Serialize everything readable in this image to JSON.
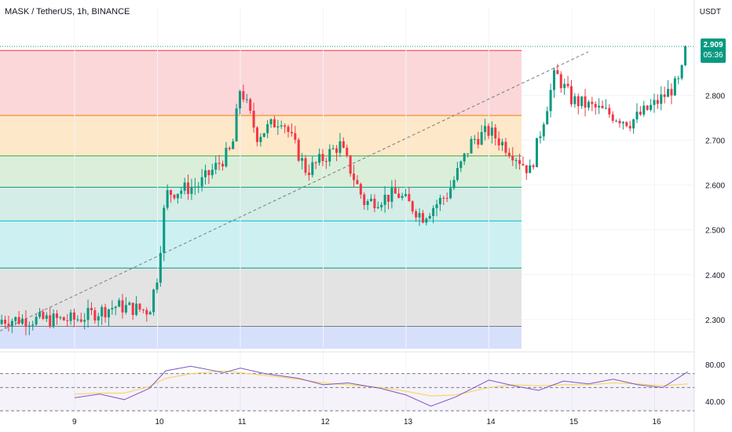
{
  "header": {
    "symbol_title": "MASK / TetherUS, 1h, BINANCE",
    "currency": "USDT"
  },
  "last_price": {
    "value": "2.909",
    "countdown": "05:36"
  },
  "colors": {
    "up": "#089981",
    "down": "#f23645",
    "trend": "#787b86",
    "rsi_line": "#7e57c2",
    "rsi_ma": "#f7d34d"
  },
  "chart_data": [
    {
      "type": "candlestick",
      "y_axis_ticks": [
        "2.800",
        "2.700",
        "2.600",
        "2.500",
        "2.400",
        "2.300"
      ],
      "x_axis_ticks": [
        "9",
        "10",
        "11",
        "12",
        "13",
        "14",
        "15",
        "16"
      ],
      "ylim": [
        2.235,
        2.995
      ],
      "fib_levels": [
        {
          "price": 2.9,
          "fill": "#fcd7da",
          "line": "#f23645"
        },
        {
          "price": 2.755,
          "fill": "#fde8c9",
          "line": "#f57c00"
        },
        {
          "price": 2.665,
          "fill": "#dbeed9",
          "line": "#4caf50"
        },
        {
          "price": 2.595,
          "fill": "#d4ede6",
          "line": "#089981"
        },
        {
          "price": 2.52,
          "fill": "#cdf1f2",
          "line": "#00bcd4"
        },
        {
          "price": 2.415,
          "fill": "#e3e3e3",
          "line": "#089981"
        },
        {
          "price": 2.285,
          "fill": "#d7e0fb",
          "line": "#787b86"
        }
      ],
      "fib_bottom": 2.235,
      "trend_line": {
        "start": {
          "time": 0,
          "price": 2.285
        },
        "end": {
          "time": 6.2,
          "price": 2.897
        }
      },
      "time_origin_label": "9",
      "series": [
        {
          "time": 0.0,
          "price": 2.3
        },
        {
          "time": 0.5,
          "price": 2.33
        },
        {
          "time": 0.9,
          "price": 2.32
        },
        {
          "time": 1.0,
          "price": 2.4
        },
        {
          "time": 1.1,
          "price": 2.58
        },
        {
          "time": 1.5,
          "price": 2.6
        },
        {
          "time": 1.9,
          "price": 2.68
        },
        {
          "time": 2.0,
          "price": 2.82
        },
        {
          "time": 2.2,
          "price": 2.71
        },
        {
          "time": 2.5,
          "price": 2.75
        },
        {
          "time": 2.8,
          "price": 2.63
        },
        {
          "time": 3.2,
          "price": 2.69
        },
        {
          "time": 3.5,
          "price": 2.56
        },
        {
          "time": 3.9,
          "price": 2.58
        },
        {
          "time": 4.2,
          "price": 2.53
        },
        {
          "time": 4.5,
          "price": 2.58
        },
        {
          "time": 4.8,
          "price": 2.7
        },
        {
          "time": 5.0,
          "price": 2.72
        },
        {
          "time": 5.3,
          "price": 2.67
        },
        {
          "time": 5.5,
          "price": 2.63
        },
        {
          "time": 5.8,
          "price": 2.85
        },
        {
          "time": 6.0,
          "price": 2.79
        },
        {
          "time": 6.3,
          "price": 2.77
        },
        {
          "time": 6.7,
          "price": 2.74
        },
        {
          "time": 7.0,
          "price": 2.78
        },
        {
          "time": 7.3,
          "price": 2.83
        },
        {
          "time": 7.4,
          "price": 2.909
        }
      ]
    },
    {
      "type": "line",
      "indicator": "RSI",
      "y_axis_ticks": [
        "80.00",
        "40.00"
      ],
      "ylim": [
        30,
        90
      ],
      "bands": [
        70,
        55,
        30
      ],
      "x": [
        0.0,
        0.3,
        0.6,
        0.9,
        1.1,
        1.4,
        1.8,
        2.0,
        2.3,
        2.7,
        3.0,
        3.3,
        3.7,
        4.0,
        4.3,
        4.6,
        5.0,
        5.3,
        5.6,
        5.9,
        6.2,
        6.5,
        6.8,
        7.1,
        7.4
      ],
      "series": [
        {
          "values": [
            44,
            48,
            42,
            54,
            73,
            78,
            71,
            76,
            70,
            65,
            58,
            60,
            54,
            47,
            35,
            45,
            63,
            57,
            52,
            62,
            59,
            64,
            58,
            55,
            72
          ]
        },
        {
          "values": [
            48,
            49,
            49,
            56,
            65,
            70,
            73,
            71,
            68,
            64,
            60,
            58,
            55,
            51,
            46,
            47,
            55,
            58,
            57,
            58,
            58,
            60,
            59,
            57,
            59
          ]
        }
      ]
    }
  ]
}
